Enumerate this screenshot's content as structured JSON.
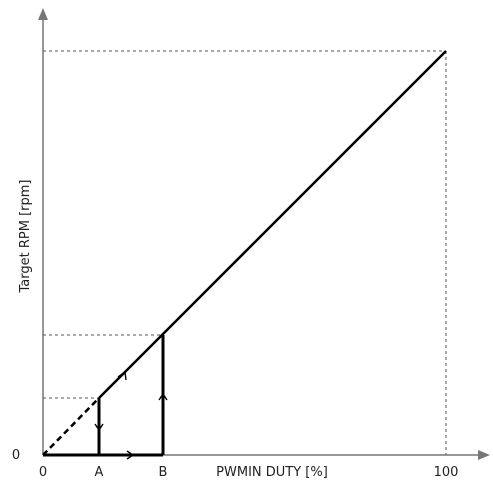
{
  "chart_data": {
    "type": "line",
    "title": "",
    "xlabel": "PWMIN DUTY [%]",
    "ylabel": "Target RPM [rpm]",
    "x_tick_labels": [
      "0",
      "A",
      "B",
      "100"
    ],
    "y_tick_labels": [
      "0"
    ],
    "grid": false,
    "legend": "none",
    "line_color": "#000000",
    "guide_color": "#555555",
    "series": [
      {
        "values": [
          {
            "x": "A",
            "y": "RPM at A"
          },
          {
            "x": "B",
            "y": "RPM at B"
          },
          {
            "x": "100",
            "y": "max RPM"
          }
        ]
      }
    ],
    "annotations": [
      "dashed extrapolation from 0 to A",
      "hysteresis loop between A and B with direction arrows",
      "dotted guide lines at A, B and 100"
    ]
  }
}
